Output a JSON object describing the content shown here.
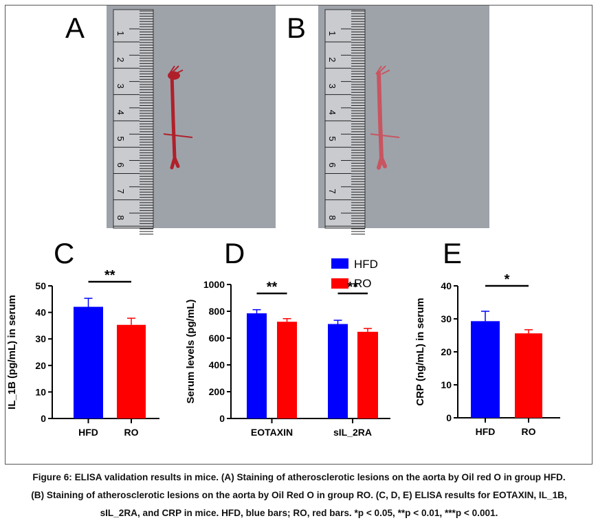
{
  "panel_labels": {
    "A": "A",
    "B": "B",
    "C": "C",
    "D": "D",
    "E": "E"
  },
  "photos": [
    {
      "label": "A",
      "ruler_numbers": [
        "1",
        "2",
        "3",
        "4",
        "5",
        "6",
        "7",
        "8"
      ],
      "group": "HFD"
    },
    {
      "label": "B",
      "ruler_numbers": [
        "1",
        "2",
        "3",
        "4",
        "5",
        "6",
        "7",
        "8"
      ],
      "group": "RO"
    }
  ],
  "legend": [
    {
      "name": "HFD",
      "color": "#0000ff"
    },
    {
      "name": "RO",
      "color": "#ff0000"
    }
  ],
  "chart_data": [
    {
      "type": "bar",
      "panel": "C",
      "ylabel": "IL_1B (pg/mL) in serum",
      "ylim": [
        0,
        50
      ],
      "yticks": [
        0,
        10,
        20,
        30,
        40,
        50
      ],
      "categories": [
        "HFD",
        "RO"
      ],
      "values": [
        42.1,
        35.3
      ],
      "error_upper": [
        45.3,
        37.8
      ],
      "colors": [
        "#0000ff",
        "#ff0000"
      ],
      "significance": [
        {
          "label": "**",
          "between": [
            "HFD",
            "RO"
          ]
        }
      ]
    },
    {
      "type": "bar",
      "panel": "D",
      "ylabel": "Serum levels (pg/mL)",
      "ylim": [
        0,
        1000
      ],
      "yticks": [
        0,
        200,
        400,
        600,
        800,
        1000
      ],
      "categories": [
        "EOTAXIN",
        "sIL_2RA"
      ],
      "series": [
        {
          "name": "HFD",
          "values": [
            785,
            705
          ],
          "error_upper": [
            812,
            733
          ],
          "color": "#0000ff"
        },
        {
          "name": "RO",
          "values": [
            722,
            647
          ],
          "error_upper": [
            745,
            672
          ],
          "color": "#ff0000"
        }
      ],
      "significance": [
        {
          "label": "**",
          "category": "EOTAXIN"
        },
        {
          "label": "**",
          "category": "sIL_2RA"
        }
      ]
    },
    {
      "type": "bar",
      "panel": "E",
      "ylabel": "CRP (ng/mL) in serum",
      "ylim": [
        0,
        40
      ],
      "yticks": [
        0,
        10,
        20,
        30,
        40
      ],
      "categories": [
        "HFD",
        "RO"
      ],
      "values": [
        29.3,
        25.6
      ],
      "error_upper": [
        32.3,
        26.7
      ],
      "colors": [
        "#0000ff",
        "#ff0000"
      ],
      "significance": [
        {
          "label": "*",
          "between": [
            "HFD",
            "RO"
          ]
        }
      ]
    }
  ],
  "caption": [
    "Figure 6: ELISA validation results in mice. (A) Staining of atherosclerotic lesions on the aorta by Oil red O in group HFD.",
    "(B) Staining of atherosclerotic lesions on the aorta by Oil Red O in group RO. (C, D, E) ELISA results for EOTAXIN, IL_1B,",
    "sIL_2RA, and CRP in mice. HFD, blue bars; RO, red bars. *p < 0.05, **p < 0.01, ***p < 0.001."
  ]
}
